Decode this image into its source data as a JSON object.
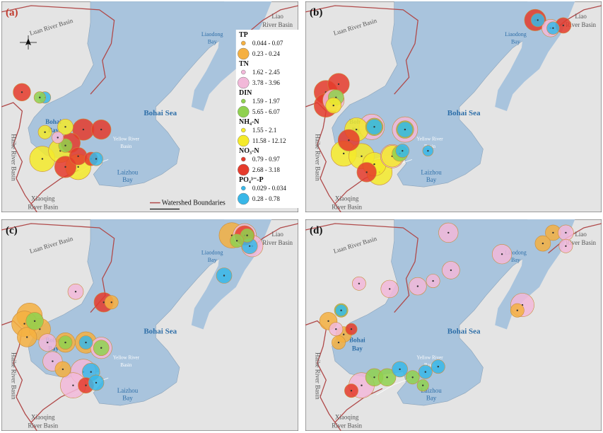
{
  "colors": {
    "sea": "#a9c4dd",
    "land": "#e4e4e4",
    "boundary": "#b04a4a",
    "label_blue": "#2f6fa8",
    "TP": "#f5b041",
    "TN": "#f2b8d9",
    "DIN": "#8fd14f",
    "NH4": "#f4ea2a",
    "NO3": "#e53b2c",
    "PO4": "#38b7e8"
  },
  "labels": {
    "bohai_sea": "Bohai Sea",
    "bohai_bay": [
      "Bohai",
      "Bay"
    ],
    "laizhou_bay": [
      "Laizhou",
      "Bay"
    ],
    "liaodong_bay": [
      "Liaodong",
      "Bay"
    ],
    "luan_river": "Luan River Basin",
    "liao_river": [
      "Liao",
      "River Basin"
    ],
    "haihe_river": "Haihe River Basin",
    "xiaoqing_river": [
      "Xiaoqing",
      "River Basin"
    ],
    "yellow_river": [
      "Yellow River",
      "Basin"
    ]
  },
  "panels": [
    {
      "id": "a",
      "label": "(a)"
    },
    {
      "id": "b",
      "label": "(b)"
    },
    {
      "id": "c",
      "label": "(c)"
    },
    {
      "id": "d",
      "label": "(d)"
    }
  ],
  "legend": {
    "items": [
      {
        "key": "TP",
        "title": "TP",
        "low": "0.044 - 0.07",
        "high": "0.23 - 0.24"
      },
      {
        "key": "TN",
        "title": "TN",
        "low": "1.62 - 2.45",
        "high": "3.78 - 3.96"
      },
      {
        "key": "DIN",
        "title": "DIN",
        "low": "1.59 - 1.97",
        "high": "5.65 - 6.07"
      },
      {
        "key": "NH4",
        "title": "NH₄-N",
        "low": "1.55 - 2.1",
        "high": "11.58 - 12.12"
      },
      {
        "key": "NO3",
        "title": "NO₃-N",
        "low": "0.79 - 0.97",
        "high": "2.68 - 3.18"
      },
      {
        "key": "PO4",
        "title": "PO₄³⁻-P",
        "low": "0.029 - 0.034",
        "high": "0.28 - 0.78"
      }
    ],
    "boundary_label": "Watershed Boundaries"
  },
  "sites": {
    "a": [
      {
        "lon": 117.6,
        "lat": 39.55,
        "v": "NO3",
        "s": 0.6
      },
      {
        "lon": 118.05,
        "lat": 39.45,
        "v": "PO4",
        "s": 0.3
      },
      {
        "lon": 117.95,
        "lat": 39.45,
        "v": "DIN",
        "s": 0.3
      },
      {
        "lon": 118.45,
        "lat": 38.9,
        "v": "NH4",
        "s": 0.5
      },
      {
        "lon": 118.05,
        "lat": 38.8,
        "v": "NH4",
        "s": 0.4
      },
      {
        "lon": 118.8,
        "lat": 38.85,
        "v": "NO3",
        "s": 0.8
      },
      {
        "lon": 119.15,
        "lat": 38.85,
        "v": "NO3",
        "s": 0.7
      },
      {
        "lon": 118.0,
        "lat": 38.3,
        "v": "NH4",
        "s": 1.0
      },
      {
        "lon": 118.35,
        "lat": 38.45,
        "v": "NH4",
        "s": 0.9
      },
      {
        "lon": 118.55,
        "lat": 38.6,
        "v": "NO3",
        "s": 0.7
      },
      {
        "lon": 118.7,
        "lat": 38.35,
        "v": "NO3",
        "s": 0.6
      },
      {
        "lon": 118.45,
        "lat": 38.15,
        "v": "NO3",
        "s": 0.8
      },
      {
        "lon": 118.7,
        "lat": 38.15,
        "v": "NH4",
        "s": 1.0
      },
      {
        "lon": 118.95,
        "lat": 38.3,
        "v": "NO3",
        "s": 0.4
      },
      {
        "lon": 119.05,
        "lat": 38.3,
        "v": "PO4",
        "s": 0.4
      },
      {
        "lon": 118.3,
        "lat": 38.7,
        "v": "TN",
        "s": 0.3
      },
      {
        "lon": 118.45,
        "lat": 38.55,
        "v": "DIN",
        "s": 0.4
      }
    ],
    "b": [
      {
        "lon": 121.7,
        "lat": 40.9,
        "v": "NO3",
        "s": 0.8
      },
      {
        "lon": 121.75,
        "lat": 40.9,
        "v": "PO4",
        "s": 0.4
      },
      {
        "lon": 122.0,
        "lat": 40.75,
        "v": "TN",
        "s": 0.6
      },
      {
        "lon": 122.05,
        "lat": 40.75,
        "v": "PO4",
        "s": 0.35
      },
      {
        "lon": 122.25,
        "lat": 40.8,
        "v": "NO3",
        "s": 0.5
      },
      {
        "lon": 117.85,
        "lat": 39.7,
        "v": "NO3",
        "s": 0.8
      },
      {
        "lon": 117.6,
        "lat": 39.55,
        "v": "NO3",
        "s": 0.9
      },
      {
        "lon": 117.75,
        "lat": 39.4,
        "v": "TN",
        "s": 0.8
      },
      {
        "lon": 117.8,
        "lat": 39.45,
        "v": "DIN",
        "s": 0.5
      },
      {
        "lon": 117.6,
        "lat": 39.3,
        "v": "NO3",
        "s": 0.9
      },
      {
        "lon": 117.75,
        "lat": 39.3,
        "v": "NH4",
        "s": 0.5
      },
      {
        "lon": 118.2,
        "lat": 38.85,
        "v": "NH4",
        "s": 0.9
      },
      {
        "lon": 118.5,
        "lat": 38.9,
        "v": "TN",
        "s": 1.0
      },
      {
        "lon": 118.55,
        "lat": 38.9,
        "v": "DIN",
        "s": 0.6
      },
      {
        "lon": 118.55,
        "lat": 38.9,
        "v": "PO4",
        "s": 0.5
      },
      {
        "lon": 119.15,
        "lat": 38.85,
        "v": "TN",
        "s": 1.0
      },
      {
        "lon": 119.15,
        "lat": 38.85,
        "v": "DIN",
        "s": 0.6
      },
      {
        "lon": 119.15,
        "lat": 38.85,
        "v": "PO4",
        "s": 0.5
      },
      {
        "lon": 118.05,
        "lat": 38.65,
        "v": "NO3",
        "s": 0.8
      },
      {
        "lon": 117.95,
        "lat": 38.4,
        "v": "NH4",
        "s": 1.0
      },
      {
        "lon": 118.3,
        "lat": 38.35,
        "v": "NH4",
        "s": 1.0
      },
      {
        "lon": 118.55,
        "lat": 38.2,
        "v": "NH4",
        "s": 0.9
      },
      {
        "lon": 118.9,
        "lat": 38.35,
        "v": "TN",
        "s": 0.9
      },
      {
        "lon": 118.9,
        "lat": 38.35,
        "v": "NH4",
        "s": 0.8
      },
      {
        "lon": 119.05,
        "lat": 38.4,
        "v": "DIN",
        "s": 0.5
      },
      {
        "lon": 119.1,
        "lat": 38.45,
        "v": "PO4",
        "s": 0.4
      },
      {
        "lon": 118.65,
        "lat": 38.05,
        "v": "NH4",
        "s": 1.0
      },
      {
        "lon": 118.4,
        "lat": 38.05,
        "v": "NO3",
        "s": 0.7
      },
      {
        "lon": 119.6,
        "lat": 38.45,
        "v": "PO4",
        "s": 0.25
      }
    ],
    "c": [
      {
        "lon": 121.7,
        "lat": 40.95,
        "v": "TP",
        "s": 1.0
      },
      {
        "lon": 121.95,
        "lat": 40.95,
        "v": "TN",
        "s": 0.9
      },
      {
        "lon": 121.95,
        "lat": 40.95,
        "v": "NO3",
        "s": 0.7
      },
      {
        "lon": 122.0,
        "lat": 40.95,
        "v": "DIN",
        "s": 0.4
      },
      {
        "lon": 122.1,
        "lat": 40.75,
        "v": "TN",
        "s": 0.8
      },
      {
        "lon": 122.05,
        "lat": 40.75,
        "v": "PO4",
        "s": 0.5
      },
      {
        "lon": 121.8,
        "lat": 40.85,
        "v": "DIN",
        "s": 0.4
      },
      {
        "lon": 121.55,
        "lat": 40.2,
        "v": "PO4",
        "s": 0.5
      },
      {
        "lon": 118.65,
        "lat": 39.9,
        "v": "TN",
        "s": 0.5
      },
      {
        "lon": 119.2,
        "lat": 39.7,
        "v": "NO3",
        "s": 0.7
      },
      {
        "lon": 119.35,
        "lat": 39.7,
        "v": "TP",
        "s": 0.4
      },
      {
        "lon": 117.75,
        "lat": 39.45,
        "v": "TP",
        "s": 1.0
      },
      {
        "lon": 117.65,
        "lat": 39.3,
        "v": "TP",
        "s": 1.0
      },
      {
        "lon": 117.85,
        "lat": 39.35,
        "v": "DIN",
        "s": 0.6
      },
      {
        "lon": 117.95,
        "lat": 39.2,
        "v": "TP",
        "s": 0.8
      },
      {
        "lon": 117.7,
        "lat": 39.05,
        "v": "TP",
        "s": 0.7
      },
      {
        "lon": 118.1,
        "lat": 38.95,
        "v": "TN",
        "s": 0.6
      },
      {
        "lon": 118.45,
        "lat": 38.95,
        "v": "TP",
        "s": 0.7
      },
      {
        "lon": 118.45,
        "lat": 38.95,
        "v": "DIN",
        "s": 0.4
      },
      {
        "lon": 118.85,
        "lat": 38.95,
        "v": "TP",
        "s": 0.8
      },
      {
        "lon": 118.85,
        "lat": 38.95,
        "v": "PO4",
        "s": 0.4
      },
      {
        "lon": 119.15,
        "lat": 38.85,
        "v": "TN",
        "s": 0.8
      },
      {
        "lon": 119.15,
        "lat": 38.85,
        "v": "DIN",
        "s": 0.5
      },
      {
        "lon": 118.2,
        "lat": 38.6,
        "v": "TN",
        "s": 0.7
      },
      {
        "lon": 118.4,
        "lat": 38.45,
        "v": "TP",
        "s": 0.5
      },
      {
        "lon": 118.8,
        "lat": 38.4,
        "v": "TN",
        "s": 1.0
      },
      {
        "lon": 118.95,
        "lat": 38.4,
        "v": "PO4",
        "s": 0.6
      },
      {
        "lon": 118.6,
        "lat": 38.15,
        "v": "TN",
        "s": 1.0
      },
      {
        "lon": 118.85,
        "lat": 38.15,
        "v": "NO3",
        "s": 0.5
      },
      {
        "lon": 119.05,
        "lat": 38.2,
        "v": "PO4",
        "s": 0.5
      }
    ],
    "d": [
      {
        "lon": 120.0,
        "lat": 41.0,
        "v": "TN",
        "s": 0.7
      },
      {
        "lon": 122.05,
        "lat": 41.0,
        "v": "TP",
        "s": 0.5
      },
      {
        "lon": 122.3,
        "lat": 41.0,
        "v": "TN",
        "s": 0.5
      },
      {
        "lon": 121.85,
        "lat": 40.8,
        "v": "TP",
        "s": 0.5
      },
      {
        "lon": 122.3,
        "lat": 40.75,
        "v": "TN",
        "s": 0.4
      },
      {
        "lon": 121.05,
        "lat": 40.6,
        "v": "TN",
        "s": 0.7
      },
      {
        "lon": 120.05,
        "lat": 40.3,
        "v": "TN",
        "s": 0.6
      },
      {
        "lon": 119.7,
        "lat": 40.1,
        "v": "TN",
        "s": 0.4
      },
      {
        "lon": 119.4,
        "lat": 40.0,
        "v": "TN",
        "s": 0.6
      },
      {
        "lon": 118.85,
        "lat": 39.95,
        "v": "TN",
        "s": 0.6
      },
      {
        "lon": 118.25,
        "lat": 40.05,
        "v": "TN",
        "s": 0.4
      },
      {
        "lon": 121.45,
        "lat": 39.65,
        "v": "TN",
        "s": 0.9
      },
      {
        "lon": 121.35,
        "lat": 39.55,
        "v": "TP",
        "s": 0.4
      },
      {
        "lon": 117.9,
        "lat": 39.55,
        "v": "DIN",
        "s": 0.4
      },
      {
        "lon": 117.9,
        "lat": 39.55,
        "v": "PO4",
        "s": 0.3
      },
      {
        "lon": 117.65,
        "lat": 39.35,
        "v": "TP",
        "s": 0.6
      },
      {
        "lon": 117.8,
        "lat": 39.2,
        "v": "TN",
        "s": 0.4
      },
      {
        "lon": 117.95,
        "lat": 39.1,
        "v": "TP",
        "s": 0.5
      },
      {
        "lon": 118.1,
        "lat": 39.2,
        "v": "NO3",
        "s": 0.3
      },
      {
        "lon": 117.85,
        "lat": 38.95,
        "v": "TP",
        "s": 0.4
      },
      {
        "lon": 118.3,
        "lat": 38.15,
        "v": "TN",
        "s": 1.0
      },
      {
        "lon": 118.55,
        "lat": 38.3,
        "v": "DIN",
        "s": 0.6
      },
      {
        "lon": 118.8,
        "lat": 38.3,
        "v": "DIN",
        "s": 0.6
      },
      {
        "lon": 119.05,
        "lat": 38.45,
        "v": "PO4",
        "s": 0.5
      },
      {
        "lon": 119.3,
        "lat": 38.3,
        "v": "DIN",
        "s": 0.4
      },
      {
        "lon": 119.55,
        "lat": 38.4,
        "v": "PO4",
        "s": 0.4
      },
      {
        "lon": 119.8,
        "lat": 38.5,
        "v": "PO4",
        "s": 0.4
      },
      {
        "lon": 118.1,
        "lat": 38.05,
        "v": "NO3",
        "s": 0.4
      },
      {
        "lon": 119.5,
        "lat": 38.15,
        "v": "DIN",
        "s": 0.3
      }
    ]
  }
}
